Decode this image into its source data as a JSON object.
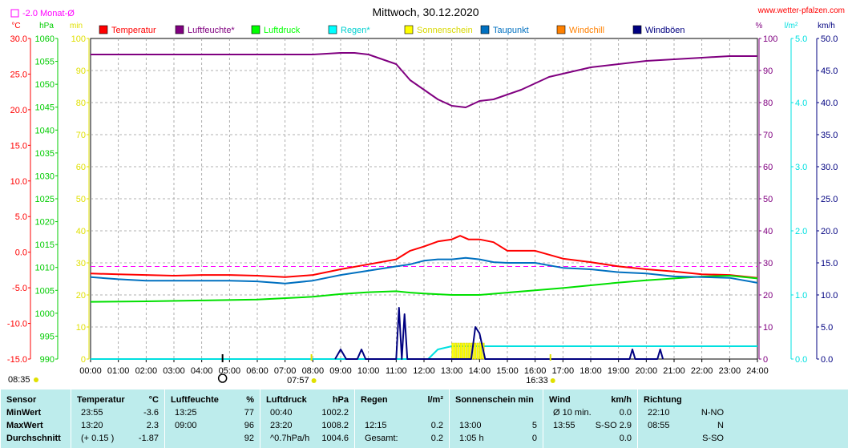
{
  "page": {
    "title": "Mittwoch, 30.12.2020",
    "site": "www.wetter-pfalzen.com",
    "month_avg_label": "-2.0 Monat-Ø"
  },
  "chart_data": {
    "type": "line",
    "title": "Mittwoch, 30.12.2020",
    "x_ticks": [
      "00:00",
      "01:00",
      "02:00",
      "03:00",
      "04:00",
      "05:00",
      "06:00",
      "07:00",
      "08:00",
      "09:00",
      "10:00",
      "11:00",
      "12:00",
      "13:00",
      "14:00",
      "15:00",
      "16:00",
      "17:00",
      "18:00",
      "19:00",
      "20:00",
      "21:00",
      "22:00",
      "23:00",
      "24:00"
    ],
    "axes": {
      "temperature": {
        "unit": "°C",
        "color": "#ff0000",
        "ticks": [
          "30.0",
          "25.0",
          "20.0",
          "15.0",
          "10.0",
          "5.0",
          "0.0",
          "-5.0",
          "-10.0",
          "-15.0"
        ],
        "ylim": [
          -15,
          30
        ]
      },
      "pressure": {
        "unit": "hPa",
        "color": "#00cc00",
        "ticks": [
          "1060",
          "1055",
          "1050",
          "1045",
          "1040",
          "1035",
          "1030",
          "1025",
          "1020",
          "1015",
          "1010",
          "1005",
          "1000",
          "995",
          "990"
        ],
        "ylim": [
          990,
          1060
        ]
      },
      "sunshine": {
        "unit": "min",
        "color": "#e0e000",
        "ticks": [
          "100",
          "90",
          "80",
          "70",
          "60",
          "50",
          "40",
          "30",
          "20",
          "10",
          "0"
        ],
        "ylim": [
          0,
          100
        ]
      },
      "humidity": {
        "unit": "%",
        "color": "#800080",
        "ticks": [
          "100",
          "90",
          "80",
          "70",
          "60",
          "50",
          "40",
          "30",
          "20",
          "10",
          "0"
        ],
        "ylim": [
          0,
          100
        ]
      },
      "rain": {
        "unit": "l/m²",
        "color": "#00e0e0",
        "ticks": [
          "5.0",
          "4.0",
          "3.0",
          "2.0",
          "1.0",
          "0.0"
        ],
        "ylim": [
          0,
          5
        ]
      },
      "wind": {
        "unit": "km/h",
        "color": "#000080",
        "ticks": [
          "50.0",
          "45.0",
          "40.0",
          "35.0",
          "30.0",
          "25.0",
          "20.0",
          "15.0",
          "10.0",
          "5.0",
          "0.0"
        ],
        "ylim": [
          0,
          50
        ]
      }
    },
    "legend": [
      {
        "name": "Temperatur",
        "color": "#ff0000"
      },
      {
        "name": "Luftfeuchte*",
        "color": "#800080"
      },
      {
        "name": "Luftdruck",
        "color": "#00ff00"
      },
      {
        "name": "Regen*",
        "color": "#00ffff"
      },
      {
        "name": "Sonnenschein",
        "color": "#ffff00"
      },
      {
        "name": "Taupunkt",
        "color": "#0070c0"
      },
      {
        "name": "Windchill",
        "color": "#ff8000"
      },
      {
        "name": "Windböen",
        "color": "#000080"
      }
    ],
    "month_avg_temperature": -2.0,
    "series": [
      {
        "name": "Temperatur",
        "axis": "temperature",
        "color": "#ff0000",
        "x": [
          0,
          1,
          2,
          3,
          4,
          5,
          6,
          7,
          8,
          9,
          10,
          11,
          11.5,
          12,
          12.5,
          13,
          13.3,
          13.6,
          14,
          14.5,
          15,
          16,
          17,
          18,
          19,
          20,
          21,
          22,
          23,
          24
        ],
        "y": [
          -3.0,
          -3.1,
          -3.2,
          -3.3,
          -3.2,
          -3.2,
          -3.3,
          -3.5,
          -3.2,
          -2.4,
          -1.7,
          -1.0,
          0.2,
          0.8,
          1.5,
          1.8,
          2.3,
          1.8,
          1.8,
          1.4,
          0.2,
          0.2,
          -0.9,
          -1.4,
          -2.0,
          -2.4,
          -2.7,
          -3.1,
          -3.2,
          -3.6
        ]
      },
      {
        "name": "Luftfeuchte*",
        "axis": "humidity",
        "color": "#800080",
        "x": [
          0,
          2,
          4,
          8,
          9,
          9.5,
          10,
          11,
          11.5,
          12,
          12.5,
          13,
          13.5,
          14,
          14.5,
          15,
          15.5,
          16,
          16.5,
          17,
          18,
          19,
          20,
          21,
          22,
          23,
          24
        ],
        "y": [
          95,
          95,
          95,
          95,
          95.5,
          95.5,
          95,
          92,
          87,
          84,
          81,
          79,
          78.5,
          80.5,
          81,
          82.5,
          84,
          86,
          88,
          89,
          91,
          92,
          93,
          93.5,
          94,
          94.5,
          94.5
        ]
      },
      {
        "name": "Luftdruck",
        "axis": "pressure",
        "color": "#00e000",
        "x": [
          0,
          2,
          4,
          6,
          8,
          9,
          10,
          11,
          11.5,
          12,
          13,
          14,
          15,
          16,
          17,
          18,
          19,
          20,
          21,
          22,
          23,
          24
        ],
        "y": [
          1002.5,
          1002.6,
          1002.8,
          1003.0,
          1003.6,
          1004.2,
          1004.6,
          1004.8,
          1004.5,
          1004.3,
          1004.0,
          1004.0,
          1004.5,
          1005.0,
          1005.5,
          1006.1,
          1006.7,
          1007.2,
          1007.6,
          1008.0,
          1008.2,
          1007.6
        ]
      },
      {
        "name": "Regen*",
        "axis": "rain",
        "color": "#00e0e0",
        "x": [
          0,
          12.15,
          12.5,
          13,
          24
        ],
        "y": [
          0,
          0,
          0.15,
          0.2,
          0.2
        ]
      },
      {
        "name": "Sonnenschein",
        "axis": "sunshine",
        "color": "#ffff00",
        "x": [
          13,
          13.1,
          13.2,
          13.3,
          13.4,
          13.5,
          13.6,
          13.7,
          13.8,
          13.9,
          14,
          14.1
        ],
        "y": [
          5,
          5,
          5,
          5,
          5,
          5,
          5,
          5,
          5,
          5,
          5,
          5
        ]
      },
      {
        "name": "Taupunkt",
        "axis": "temperature",
        "color": "#0070c0",
        "x": [
          0,
          1,
          2,
          3,
          4,
          5,
          6,
          7,
          8,
          9,
          10,
          11,
          11.5,
          12,
          12.5,
          13,
          13.5,
          14,
          14.5,
          15,
          16,
          17,
          18,
          19,
          20,
          21,
          22,
          23,
          24
        ],
        "y": [
          -3.5,
          -3.8,
          -4.0,
          -4.0,
          -4.0,
          -4.0,
          -4.1,
          -4.4,
          -4.0,
          -3.2,
          -2.6,
          -2.0,
          -1.7,
          -1.2,
          -1.0,
          -1.0,
          -0.8,
          -1.0,
          -1.4,
          -1.5,
          -1.5,
          -2.2,
          -2.4,
          -2.8,
          -3.0,
          -3.4,
          -3.5,
          -3.6,
          -4.3
        ]
      },
      {
        "name": "Windböen",
        "axis": "wind",
        "color": "#000080",
        "x": [
          8.8,
          9,
          9.2,
          9.6,
          9.75,
          9.9,
          11,
          11.1,
          11.2,
          11.3,
          11.4,
          11.5,
          13.7,
          13.85,
          14,
          14.2,
          19.4,
          19.5,
          19.6,
          20.4,
          20.5,
          20.6
        ],
        "y": [
          0,
          1.5,
          0,
          0,
          1.5,
          0,
          0,
          8,
          0,
          7,
          0,
          0,
          0,
          5,
          4,
          0,
          0,
          1.5,
          0,
          0,
          1.5,
          0
        ]
      }
    ],
    "annotations": {
      "sunrise": "07:57",
      "sunset": "16:33",
      "moon_time": "04:45",
      "time_label": "08:35"
    }
  },
  "stats": {
    "columns": [
      {
        "title": "Sensor",
        "unit": "",
        "rows": [
          {
            "a": "MinWert",
            "b": ""
          },
          {
            "a": "MaxWert",
            "b": ""
          },
          {
            "a": "Durchschnitt",
            "b": ""
          }
        ]
      },
      {
        "title": "Temperatur",
        "unit": "°C",
        "rows": [
          {
            "a": "23:55",
            "b": "-3.6"
          },
          {
            "a": "13:20",
            "b": "2.3"
          },
          {
            "a": "(+ 0.15 )",
            "b": "-1.87"
          }
        ]
      },
      {
        "title": "Luftfeuchte",
        "unit": "%",
        "rows": [
          {
            "a": "13:25",
            "b": "77"
          },
          {
            "a": "09:00",
            "b": "96"
          },
          {
            "a": "",
            "b": "92"
          }
        ]
      },
      {
        "title": "Luftdruck",
        "unit": "hPa",
        "rows": [
          {
            "a": "00:40",
            "b": "1002.2"
          },
          {
            "a": "23:20",
            "b": "1008.2"
          },
          {
            "a": "^0.7hPa/h",
            "b": "1004.6"
          }
        ]
      },
      {
        "title": "Regen",
        "unit": "l/m²",
        "rows": [
          {
            "a": "",
            "b": ""
          },
          {
            "a": "12:15",
            "b": "0.2"
          },
          {
            "a": "Gesamt:",
            "b": "0.2"
          }
        ]
      },
      {
        "title": "Sonnenschein min",
        "unit": "",
        "rows": [
          {
            "a": "",
            "b": ""
          },
          {
            "a": "13:00",
            "b": "5"
          },
          {
            "a": "1:05 h",
            "b": "0"
          }
        ]
      },
      {
        "title": "Wind",
        "unit": "km/h",
        "rows": [
          {
            "a": "Ø 10 min.",
            "b": "0.0"
          },
          {
            "a": "13:55",
            "b": "S-SO 2.9"
          },
          {
            "a": "",
            "b": "0.0"
          }
        ]
      },
      {
        "title": "Richtung",
        "unit": "",
        "rows": [
          {
            "a": "22:10",
            "b": "N-NO"
          },
          {
            "a": "08:55",
            "b": "N"
          },
          {
            "a": "",
            "b": "S-SO"
          }
        ]
      }
    ]
  }
}
